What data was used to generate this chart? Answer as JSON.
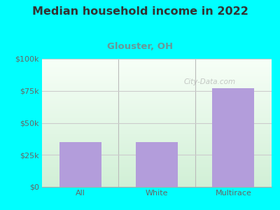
{
  "title": "Median household income in 2022",
  "subtitle": "Glouster, OH",
  "categories": [
    "All",
    "White",
    "Multirace"
  ],
  "values": [
    35000,
    35000,
    77000
  ],
  "bar_color": "#b39ddb",
  "background_color": "#00FFFF",
  "plot_bg_top_left": "#f0fff0",
  "plot_bg_top_right": "#ffffff",
  "plot_bg_bottom": "#cceecc",
  "title_color": "#333333",
  "subtitle_color": "#669999",
  "tick_color": "#666666",
  "grid_color": "#cccccc",
  "separator_color": "#bbbbbb",
  "ylim": [
    0,
    100000
  ],
  "yticks": [
    0,
    25000,
    50000,
    75000,
    100000
  ],
  "ytick_labels": [
    "$0",
    "$25k",
    "$50k",
    "$75k",
    "$100k"
  ],
  "watermark": "City-Data.com",
  "title_fontsize": 11.5,
  "subtitle_fontsize": 9.5,
  "tick_fontsize": 8,
  "bar_width": 0.55
}
